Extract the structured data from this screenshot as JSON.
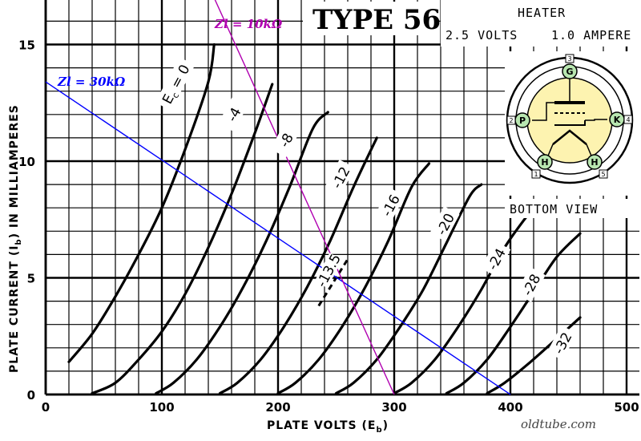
{
  "chart_data": {
    "type": "line",
    "title": "TYPE 56",
    "heater": {
      "label": "HEATER",
      "volts": "2.5 VOLTS",
      "ampere": "1.0 AMPERE"
    },
    "xlabel": "PLATE VOLTS (E",
    "xlabel_sub": "b",
    "xlabel_close": ")",
    "ylabel": "PLATE CURRENT (I",
    "ylabel_sub": "b",
    "ylabel_close": ") IN MILLIAMPERES",
    "xlim": [
      0,
      510
    ],
    "ylim": [
      0,
      16.8
    ],
    "xticks": [
      "0",
      "100",
      "200",
      "300",
      "400",
      "500"
    ],
    "xtick_values": [
      0,
      100,
      200,
      300,
      400,
      500
    ],
    "yticks": [
      "0",
      "5",
      "10",
      "15"
    ],
    "ytick_values": [
      0,
      5,
      10,
      15
    ],
    "grid": true,
    "series": [
      {
        "name": "Ec = 0",
        "label_main": "E",
        "label_sub": "c",
        "label_rest": " = 0",
        "points": [
          [
            20,
            1.4
          ],
          [
            40,
            2.6
          ],
          [
            60,
            4.2
          ],
          [
            80,
            6.0
          ],
          [
            100,
            8.0
          ],
          [
            120,
            10.5
          ],
          [
            140,
            13.4
          ],
          [
            145,
            15.0
          ]
        ]
      },
      {
        "name": "-4",
        "points": [
          [
            40,
            0.05
          ],
          [
            60,
            0.5
          ],
          [
            80,
            1.5
          ],
          [
            100,
            2.7
          ],
          [
            120,
            4.3
          ],
          [
            140,
            6.3
          ],
          [
            160,
            8.6
          ],
          [
            180,
            11.2
          ],
          [
            195,
            13.3
          ]
        ]
      },
      {
        "name": "-8",
        "points": [
          [
            95,
            0.05
          ],
          [
            110,
            0.5
          ],
          [
            130,
            1.5
          ],
          [
            150,
            2.9
          ],
          [
            170,
            4.6
          ],
          [
            190,
            6.6
          ],
          [
            210,
            8.9
          ],
          [
            230,
            11.4
          ],
          [
            243,
            12.1
          ]
        ]
      },
      {
        "name": "-12",
        "points": [
          [
            150,
            0.05
          ],
          [
            165,
            0.5
          ],
          [
            185,
            1.5
          ],
          [
            205,
            2.9
          ],
          [
            225,
            4.6
          ],
          [
            245,
            6.6
          ],
          [
            265,
            8.9
          ],
          [
            285,
            11.0
          ]
        ]
      },
      {
        "name": "-16",
        "points": [
          [
            200,
            0.05
          ],
          [
            215,
            0.5
          ],
          [
            235,
            1.5
          ],
          [
            255,
            2.9
          ],
          [
            275,
            4.6
          ],
          [
            295,
            6.6
          ],
          [
            315,
            8.9
          ],
          [
            330,
            9.9
          ]
        ]
      },
      {
        "name": "-20",
        "points": [
          [
            250,
            0.05
          ],
          [
            265,
            0.5
          ],
          [
            285,
            1.5
          ],
          [
            305,
            2.9
          ],
          [
            325,
            4.5
          ],
          [
            345,
            6.5
          ],
          [
            365,
            8.5
          ],
          [
            375,
            9.0
          ]
        ]
      },
      {
        "name": "-24",
        "points": [
          [
            300,
            0.05
          ],
          [
            315,
            0.5
          ],
          [
            335,
            1.5
          ],
          [
            355,
            2.9
          ],
          [
            375,
            4.5
          ],
          [
            395,
            6.3
          ],
          [
            415,
            7.7
          ]
        ]
      },
      {
        "name": "-28",
        "points": [
          [
            345,
            0.05
          ],
          [
            360,
            0.5
          ],
          [
            380,
            1.5
          ],
          [
            400,
            2.9
          ],
          [
            420,
            4.4
          ],
          [
            440,
            5.9
          ],
          [
            460,
            6.9
          ]
        ]
      },
      {
        "name": "-32",
        "points": [
          [
            380,
            0.05
          ],
          [
            395,
            0.5
          ],
          [
            415,
            1.3
          ],
          [
            440,
            2.4
          ],
          [
            460,
            3.3
          ]
        ]
      }
    ],
    "series_label_anchor": [
      {
        "x": 112,
        "y": 13.3
      },
      {
        "x": 162,
        "y": 12.0
      },
      {
        "x": 207,
        "y": 10.9
      },
      {
        "x": 254,
        "y": 9.3
      },
      {
        "x": 297,
        "y": 8.1
      },
      {
        "x": 344,
        "y": 7.3
      },
      {
        "x": 388,
        "y": 5.8
      },
      {
        "x": 418,
        "y": 4.7
      },
      {
        "x": 445,
        "y": 2.2
      }
    ],
    "operating_curve": {
      "name": "-13.5",
      "points": [
        [
          235,
          3.8
        ],
        [
          260,
          5.8
        ]
      ]
    },
    "load_lines": [
      {
        "name": "Zl = 30kΩ",
        "label": "Zl = 30kΩ",
        "color": "#0000ff",
        "points": [
          [
            0,
            13.4
          ],
          [
            400,
            0
          ]
        ]
      },
      {
        "name": "Zl = 10kΩ",
        "label": "Zl = 10kΩ",
        "color": "#b000b0",
        "points": [
          [
            145,
            17.0
          ],
          [
            300,
            0
          ]
        ]
      }
    ]
  },
  "tube_diagram": {
    "caption": "BOTTOM VIEW",
    "pins": [
      {
        "label": "G",
        "number": "3"
      },
      {
        "label": "P",
        "number": "2"
      },
      {
        "label": "K",
        "number": "4"
      },
      {
        "label": "H",
        "number": "1"
      },
      {
        "label": "H",
        "number": "5"
      }
    ]
  },
  "watermark": "oldtube.com"
}
